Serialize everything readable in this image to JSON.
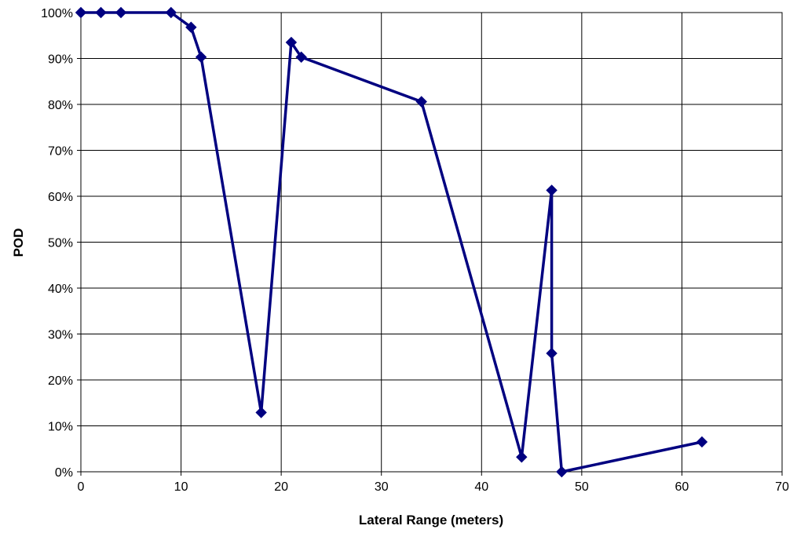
{
  "chart_data": {
    "type": "scatter",
    "title": "",
    "xlabel": "Lateral Range (meters)",
    "ylabel": "POD",
    "xlim": [
      0,
      70
    ],
    "ylim": [
      0,
      1
    ],
    "x_ticks": [
      0,
      10,
      20,
      30,
      40,
      50,
      60,
      70
    ],
    "y_ticks": [
      "0%",
      "10%",
      "20%",
      "30%",
      "40%",
      "50%",
      "60%",
      "70%",
      "80%",
      "90%",
      "100%"
    ],
    "grid": true,
    "legend": "none",
    "line_style": "straight lines with diamond markers",
    "series": [
      {
        "color": "#000080",
        "x": [
          0,
          2,
          4,
          9,
          11,
          12,
          18,
          21,
          22,
          34,
          44,
          47,
          47,
          48,
          62
        ],
        "y": [
          1.0,
          1.0,
          1.0,
          1.0,
          0.968,
          0.903,
          0.129,
          0.935,
          0.903,
          0.806,
          0.032,
          0.613,
          0.258,
          0.0,
          0.065
        ]
      }
    ]
  }
}
